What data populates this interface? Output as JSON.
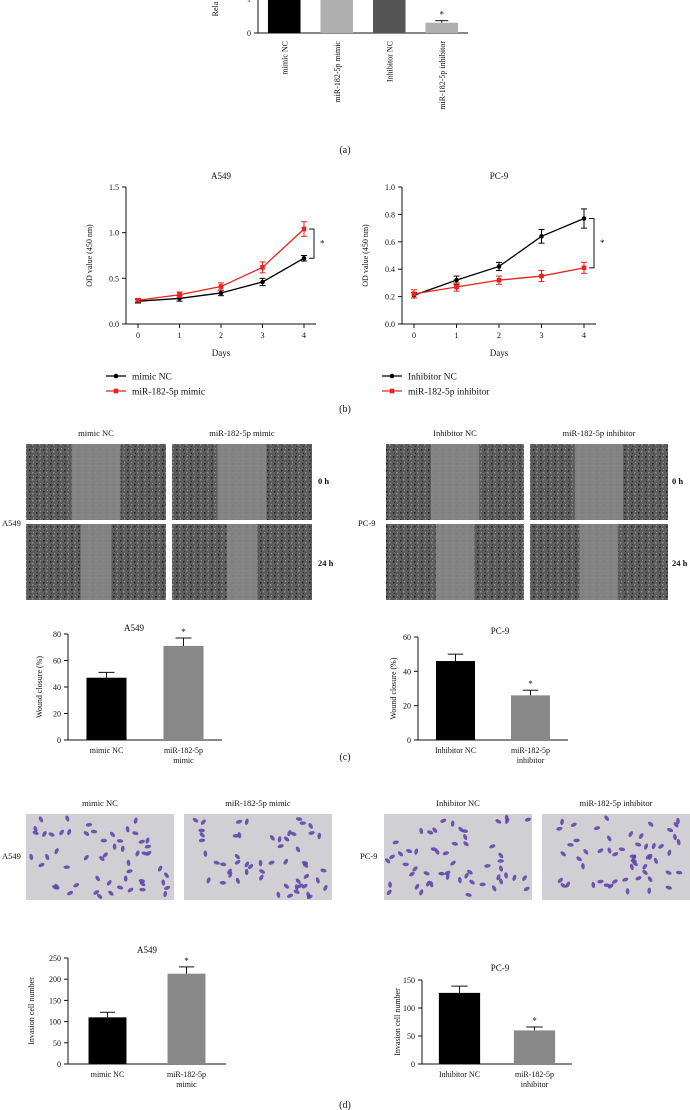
{
  "panel_labels": {
    "a": "(a)",
    "b": "(b)",
    "c": "(c)",
    "d": "(d)"
  },
  "colors": {
    "black": "#000000",
    "dark_gray": "#555555",
    "gray": "#888888",
    "light_gray": "#b0b0b0",
    "red": "#e8231b"
  },
  "chart_data": [
    {
      "id": "panel-a-expression",
      "type": "bar",
      "title": "",
      "ylabel": "Rela",
      "ylim": [
        0,
        1.4
      ],
      "yticks": [
        0,
        1
      ],
      "categories": [
        "mimic NC",
        "miR-182-5p mimic",
        "Inhibitor NC",
        "miR-182-5p inhibitor"
      ],
      "values": [
        1.0,
        1.4,
        1.0,
        0.3
      ],
      "errors": [
        0.12,
        0.0,
        0.12,
        0.06
      ],
      "colors": [
        "#000000",
        "#b0b0b0",
        "#555555",
        "#b0b0b0"
      ],
      "annotations": [
        "",
        "",
        "",
        "*"
      ]
    },
    {
      "id": "panel-b-a549",
      "type": "line",
      "title": "A549",
      "xlabel": "Days",
      "ylabel": "OD value (450 nm)",
      "ylim": [
        0,
        1.5
      ],
      "yticks": [
        "0.0",
        "0.5",
        "1.0",
        "1.5"
      ],
      "x": [
        0,
        1,
        2,
        3,
        4
      ],
      "series": [
        {
          "name": "mimic NC",
          "values": [
            0.25,
            0.28,
            0.34,
            0.46,
            0.72
          ],
          "errors": [
            0.02,
            0.03,
            0.03,
            0.04,
            0.03
          ],
          "color": "#000000"
        },
        {
          "name": "miR-182-5p mimic",
          "values": [
            0.26,
            0.32,
            0.41,
            0.62,
            1.04
          ],
          "errors": [
            0.02,
            0.03,
            0.04,
            0.06,
            0.08
          ],
          "color": "#e8231b"
        }
      ],
      "annotation": "*"
    },
    {
      "id": "panel-b-pc9",
      "type": "line",
      "title": "PC-9",
      "xlabel": "Days",
      "ylabel": "OD value (450 nm)",
      "ylim": [
        0,
        1.0
      ],
      "yticks": [
        "0.0",
        "0.2",
        "0.4",
        "0.6",
        "0.8",
        "1.0"
      ],
      "x": [
        0,
        1,
        2,
        3,
        4
      ],
      "series": [
        {
          "name": "Inhibitor NC",
          "values": [
            0.21,
            0.32,
            0.42,
            0.64,
            0.77
          ],
          "errors": [
            0.02,
            0.03,
            0.03,
            0.05,
            0.07
          ],
          "color": "#000000"
        },
        {
          "name": "miR-182-5p inhibitor",
          "values": [
            0.22,
            0.27,
            0.32,
            0.35,
            0.41
          ],
          "errors": [
            0.03,
            0.03,
            0.03,
            0.04,
            0.04
          ],
          "color": "#e8231b"
        }
      ],
      "annotation": "*"
    },
    {
      "id": "panel-c-a549",
      "type": "bar",
      "title": "A549",
      "ylabel": "Wound closure (%)",
      "ylim": [
        0,
        80
      ],
      "yticks": [
        0,
        20,
        40,
        60,
        80
      ],
      "categories": [
        "mimic NC",
        "miR-182-5p mimic"
      ],
      "values": [
        47,
        71
      ],
      "errors": [
        4,
        6
      ],
      "colors": [
        "#000000",
        "#888888"
      ],
      "annotations": [
        "",
        "*"
      ]
    },
    {
      "id": "panel-c-pc9",
      "type": "bar",
      "title": "PC-9",
      "ylabel": "Wound closure (%)",
      "ylim": [
        0,
        60
      ],
      "yticks": [
        0,
        20,
        40,
        60
      ],
      "categories": [
        "Inhibitor NC",
        "miR-182-5p inhibitor"
      ],
      "values": [
        46,
        26
      ],
      "errors": [
        4,
        3
      ],
      "colors": [
        "#000000",
        "#888888"
      ],
      "annotations": [
        "",
        "*"
      ]
    },
    {
      "id": "panel-d-a549",
      "type": "bar",
      "title": "A549",
      "ylabel": "Invasion cell number",
      "ylim": [
        0,
        250
      ],
      "yticks": [
        0,
        50,
        100,
        150,
        200,
        250
      ],
      "categories": [
        "mimic NC",
        "miR-182-5p mimic"
      ],
      "values": [
        110,
        213
      ],
      "errors": [
        12,
        16
      ],
      "colors": [
        "#000000",
        "#888888"
      ],
      "annotations": [
        "",
        "*"
      ]
    },
    {
      "id": "panel-d-pc9",
      "type": "bar",
      "title": "PC-9",
      "ylabel": "Invasion cell number",
      "ylim": [
        0,
        150
      ],
      "yticks": [
        0,
        50,
        100,
        150
      ],
      "categories": [
        "Inhibitor NC",
        "miR-182-5p inhibitor"
      ],
      "values": [
        127,
        60
      ],
      "errors": [
        12,
        6
      ],
      "colors": [
        "#000000",
        "#888888"
      ],
      "annotations": [
        "",
        "*"
      ]
    }
  ],
  "wound_images": {
    "a549": {
      "cols": [
        "mimic NC",
        "miR-182-5p mimic"
      ],
      "cell_line": "A549",
      "times": [
        "0 h",
        "24 h"
      ],
      "gaps": [
        0.35,
        0.22
      ]
    },
    "pc9": {
      "cols": [
        "Inhibitor NC",
        "miR-182-5p inhibitor"
      ],
      "cell_line": "PC-9",
      "times": [
        "0 h",
        "24 h"
      ],
      "gaps": [
        0.35,
        0.28
      ]
    }
  },
  "invasion_images": {
    "a549": {
      "cols": [
        "mimic NC",
        "miR-182-5p mimic"
      ],
      "cell_line": "A549"
    },
    "pc9": {
      "cols": [
        "Inhibitor NC",
        "miR-182-5p inhibitor"
      ],
      "cell_line": "PC-9"
    }
  }
}
